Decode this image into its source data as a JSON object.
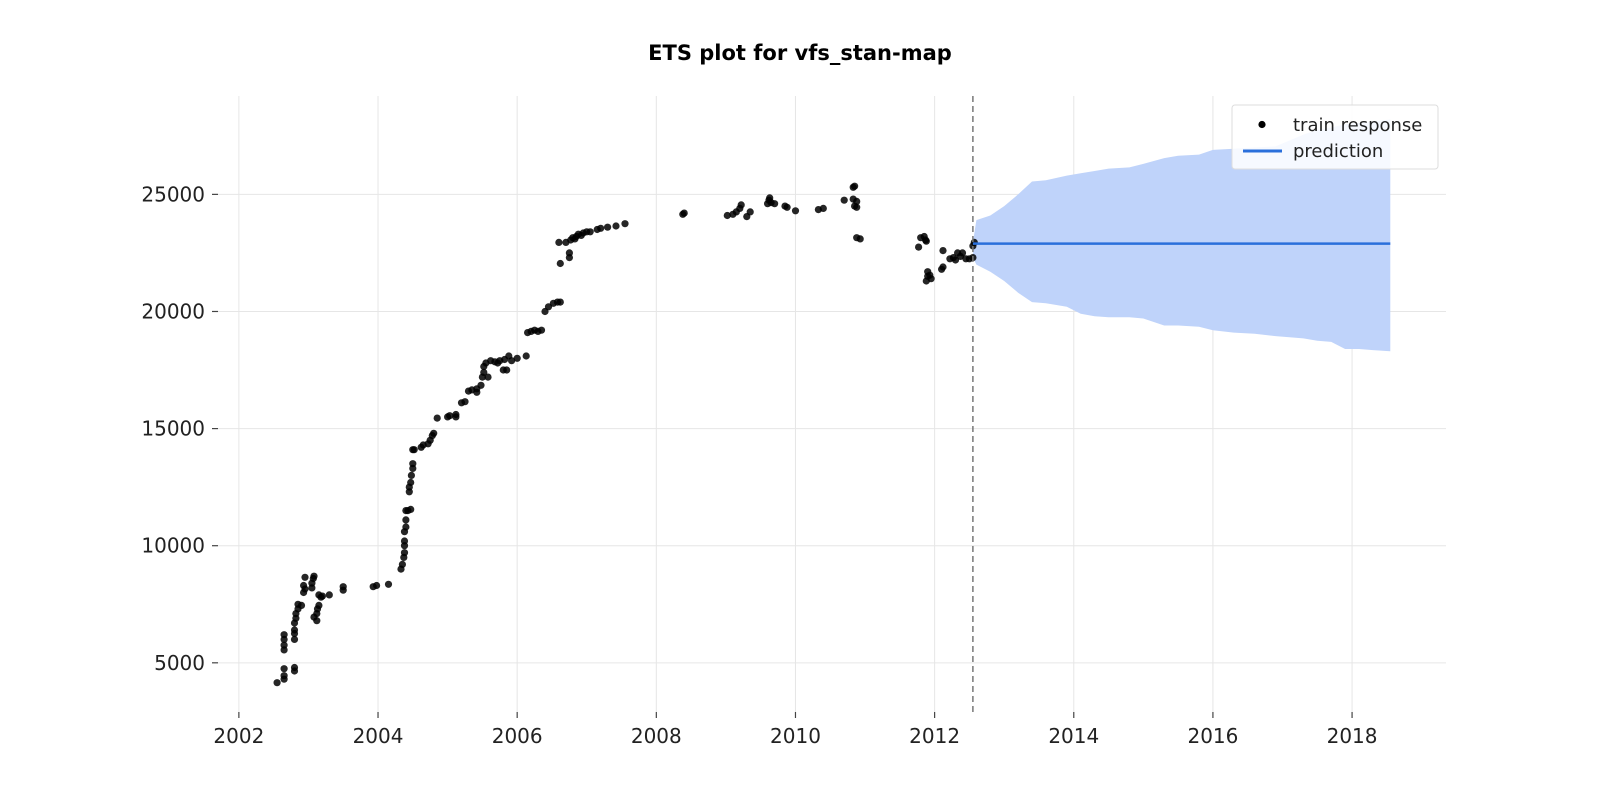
{
  "chart_data": {
    "type": "scatter",
    "title": "ETS plot for vfs_stan-map",
    "xlabel": "",
    "ylabel": "",
    "xlim": [
      2001.7,
      2019.35
    ],
    "ylim": [
      2900,
      29200
    ],
    "x_ticks": [
      2002,
      2004,
      2006,
      2008,
      2010,
      2012,
      2014,
      2016,
      2018
    ],
    "y_ticks": [
      5000,
      10000,
      15000,
      20000,
      25000
    ],
    "grid": true,
    "legend": {
      "placement": "top-right",
      "entries": [
        "train response",
        "prediction"
      ]
    },
    "colors": {
      "train": "#000000",
      "prediction": "#2a6fdb",
      "band": "#bfd3fa",
      "cutoff": "#777777"
    },
    "cutoff_x": 2012.55,
    "series": [
      {
        "name": "train response",
        "kind": "scatter",
        "points": [
          [
            2002.55,
            4150
          ],
          [
            2002.65,
            4300
          ],
          [
            2002.65,
            4450
          ],
          [
            2002.65,
            4750
          ],
          [
            2002.65,
            5550
          ],
          [
            2002.65,
            5750
          ],
          [
            2002.65,
            6000
          ],
          [
            2002.65,
            6200
          ],
          [
            2002.8,
            4650
          ],
          [
            2002.8,
            4800
          ],
          [
            2002.8,
            6000
          ],
          [
            2002.8,
            6250
          ],
          [
            2002.8,
            6400
          ],
          [
            2002.8,
            6700
          ],
          [
            2002.82,
            6900
          ],
          [
            2002.82,
            7100
          ],
          [
            2002.85,
            7300
          ],
          [
            2002.85,
            7500
          ],
          [
            2002.9,
            7450
          ],
          [
            2002.93,
            8000
          ],
          [
            2002.93,
            8300
          ],
          [
            2002.95,
            8650
          ],
          [
            2002.95,
            8150
          ],
          [
            2003.05,
            8200
          ],
          [
            2003.05,
            8400
          ],
          [
            2003.07,
            8600
          ],
          [
            2003.08,
            8700
          ],
          [
            2003.08,
            6950
          ],
          [
            2003.12,
            6800
          ],
          [
            2003.12,
            7100
          ],
          [
            2003.13,
            7300
          ],
          [
            2003.15,
            7450
          ],
          [
            2003.15,
            7900
          ],
          [
            2003.18,
            7800
          ],
          [
            2003.2,
            7850
          ],
          [
            2003.3,
            7900
          ],
          [
            2003.5,
            8100
          ],
          [
            2003.5,
            8250
          ],
          [
            2003.93,
            8250
          ],
          [
            2003.98,
            8300
          ],
          [
            2004.15,
            8350
          ],
          [
            2004.33,
            9000
          ],
          [
            2004.35,
            9200
          ],
          [
            2004.37,
            9500
          ],
          [
            2004.38,
            9700
          ],
          [
            2004.38,
            10000
          ],
          [
            2004.38,
            10200
          ],
          [
            2004.38,
            10600
          ],
          [
            2004.4,
            10800
          ],
          [
            2004.4,
            11100
          ],
          [
            2004.4,
            11500
          ],
          [
            2004.43,
            11500
          ],
          [
            2004.47,
            11550
          ],
          [
            2004.45,
            12300
          ],
          [
            2004.45,
            12500
          ],
          [
            2004.47,
            12700
          ],
          [
            2004.48,
            13000
          ],
          [
            2004.5,
            13300
          ],
          [
            2004.5,
            13500
          ],
          [
            2004.5,
            14100
          ],
          [
            2004.52,
            14100
          ],
          [
            2004.62,
            14200
          ],
          [
            2004.65,
            14300
          ],
          [
            2004.72,
            14350
          ],
          [
            2004.75,
            14500
          ],
          [
            2004.78,
            14700
          ],
          [
            2004.8,
            14800
          ],
          [
            2004.85,
            15450
          ],
          [
            2005.0,
            15500
          ],
          [
            2005.03,
            15550
          ],
          [
            2005.12,
            15500
          ],
          [
            2005.12,
            15600
          ],
          [
            2005.2,
            16100
          ],
          [
            2005.25,
            16150
          ],
          [
            2005.3,
            16600
          ],
          [
            2005.35,
            16650
          ],
          [
            2005.42,
            16550
          ],
          [
            2005.42,
            16700
          ],
          [
            2005.48,
            16850
          ],
          [
            2005.5,
            17200
          ],
          [
            2005.52,
            17400
          ],
          [
            2005.52,
            17650
          ],
          [
            2005.55,
            17800
          ],
          [
            2005.58,
            17200
          ],
          [
            2005.62,
            17900
          ],
          [
            2005.68,
            17850
          ],
          [
            2005.72,
            17800
          ],
          [
            2005.75,
            17900
          ],
          [
            2005.8,
            17500
          ],
          [
            2005.82,
            17950
          ],
          [
            2005.85,
            17500
          ],
          [
            2005.88,
            18100
          ],
          [
            2005.92,
            17900
          ],
          [
            2006.0,
            18000
          ],
          [
            2006.13,
            18100
          ],
          [
            2006.15,
            19100
          ],
          [
            2006.2,
            19150
          ],
          [
            2006.25,
            19200
          ],
          [
            2006.3,
            19150
          ],
          [
            2006.35,
            19200
          ],
          [
            2006.4,
            20000
          ],
          [
            2006.45,
            20200
          ],
          [
            2006.52,
            20350
          ],
          [
            2006.58,
            20400
          ],
          [
            2006.62,
            20400
          ],
          [
            2006.62,
            22050
          ],
          [
            2006.6,
            22950
          ],
          [
            2006.7,
            22950
          ],
          [
            2006.75,
            22300
          ],
          [
            2006.75,
            22500
          ],
          [
            2006.77,
            23050
          ],
          [
            2006.8,
            23150
          ],
          [
            2006.83,
            23100
          ],
          [
            2006.85,
            23200
          ],
          [
            2006.88,
            23300
          ],
          [
            2006.92,
            23250
          ],
          [
            2006.95,
            23350
          ],
          [
            2007.0,
            23400
          ],
          [
            2007.05,
            23400
          ],
          [
            2007.15,
            23500
          ],
          [
            2007.2,
            23550
          ],
          [
            2007.3,
            23600
          ],
          [
            2007.42,
            23650
          ],
          [
            2007.55,
            23750
          ],
          [
            2008.38,
            24150
          ],
          [
            2008.4,
            24200
          ],
          [
            2009.02,
            24100
          ],
          [
            2009.1,
            24150
          ],
          [
            2009.15,
            24250
          ],
          [
            2009.2,
            24400
          ],
          [
            2009.22,
            24550
          ],
          [
            2009.3,
            24050
          ],
          [
            2009.35,
            24250
          ],
          [
            2009.6,
            24600
          ],
          [
            2009.62,
            24750
          ],
          [
            2009.63,
            24850
          ],
          [
            2009.65,
            24650
          ],
          [
            2009.7,
            24600
          ],
          [
            2009.85,
            24500
          ],
          [
            2009.88,
            24450
          ],
          [
            2010.0,
            24300
          ],
          [
            2010.33,
            24350
          ],
          [
            2010.4,
            24400
          ],
          [
            2010.7,
            24750
          ],
          [
            2010.83,
            24800
          ],
          [
            2010.83,
            25300
          ],
          [
            2010.85,
            25350
          ],
          [
            2010.85,
            24500
          ],
          [
            2010.88,
            24450
          ],
          [
            2010.88,
            24700
          ],
          [
            2010.88,
            23150
          ],
          [
            2010.93,
            23100
          ],
          [
            2011.77,
            22750
          ],
          [
            2011.8,
            23150
          ],
          [
            2011.85,
            23200
          ],
          [
            2011.87,
            23050
          ],
          [
            2011.88,
            23000
          ],
          [
            2011.88,
            21300
          ],
          [
            2011.9,
            21500
          ],
          [
            2011.9,
            21700
          ],
          [
            2011.93,
            21550
          ],
          [
            2011.95,
            21400
          ],
          [
            2012.1,
            21800
          ],
          [
            2012.12,
            21900
          ],
          [
            2012.12,
            22600
          ],
          [
            2012.22,
            22250
          ],
          [
            2012.27,
            22300
          ],
          [
            2012.3,
            22200
          ],
          [
            2012.33,
            22500
          ],
          [
            2012.37,
            22350
          ],
          [
            2012.4,
            22500
          ],
          [
            2012.45,
            22250
          ],
          [
            2012.5,
            22250
          ],
          [
            2012.55,
            22300
          ],
          [
            2012.55,
            22800
          ],
          [
            2012.57,
            22950
          ]
        ]
      },
      {
        "name": "prediction",
        "kind": "line",
        "points": [
          [
            2012.55,
            22900
          ],
          [
            2018.55,
            22900
          ]
        ]
      },
      {
        "kind": "band",
        "points": [
          [
            2012.55,
            22300,
            22950
          ],
          [
            2012.6,
            22000,
            23900
          ],
          [
            2012.8,
            21700,
            24100
          ],
          [
            2013.0,
            21300,
            24500
          ],
          [
            2013.2,
            20800,
            25000
          ],
          [
            2013.4,
            20400,
            25550
          ],
          [
            2013.6,
            20350,
            25600
          ],
          [
            2013.9,
            20200,
            25800
          ],
          [
            2014.1,
            19900,
            25900
          ],
          [
            2014.3,
            19800,
            26000
          ],
          [
            2014.5,
            19750,
            26100
          ],
          [
            2014.8,
            19750,
            26150
          ],
          [
            2015.0,
            19700,
            26300
          ],
          [
            2015.3,
            19400,
            26550
          ],
          [
            2015.5,
            19400,
            26650
          ],
          [
            2015.8,
            19350,
            26700
          ],
          [
            2016.0,
            19200,
            26900
          ],
          [
            2016.3,
            19100,
            26950
          ],
          [
            2016.6,
            19050,
            27000
          ],
          [
            2016.9,
            18950,
            27050
          ],
          [
            2017.1,
            18900,
            27300
          ],
          [
            2017.3,
            18850,
            27550
          ],
          [
            2017.5,
            18750,
            27750
          ],
          [
            2017.7,
            18700,
            27850
          ],
          [
            2017.9,
            18400,
            28000
          ],
          [
            2018.1,
            18400,
            28050
          ],
          [
            2018.3,
            18350,
            28100
          ],
          [
            2018.55,
            18300,
            28200
          ]
        ]
      }
    ]
  }
}
